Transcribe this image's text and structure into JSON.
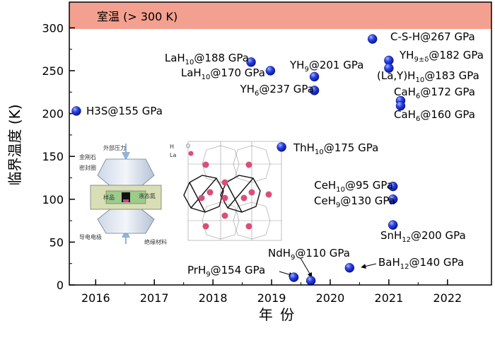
{
  "chart_data": {
    "type": "scatter",
    "xlabel": "年 份",
    "ylabel": "临界温度 (K)",
    "xlim": [
      2015.55,
      2022.75
    ],
    "ylim": [
      0,
      330
    ],
    "x_ticks": [
      2016,
      2017,
      2018,
      2019,
      2020,
      2021,
      2022
    ],
    "y_ticks": [
      0,
      50,
      100,
      150,
      200,
      250,
      300
    ],
    "band": {
      "label": "室温 (> 300 K)",
      "from": 300,
      "to": 330,
      "color": "#f4a090"
    },
    "marker_color": "#1f2fd8",
    "points": [
      {
        "x": 2015.67,
        "y": 203,
        "label": "H3S@155 GPa"
      },
      {
        "x": 2018.65,
        "y": 260,
        "label": "LaH10@188 GPa"
      },
      {
        "x": 2018.98,
        "y": 250,
        "label": "LaH10@170 GPa"
      },
      {
        "x": 2019.73,
        "y": 243,
        "label": "YH9@201 GPa"
      },
      {
        "x": 2019.73,
        "y": 227,
        "label": "YH6@237 GPa"
      },
      {
        "x": 2020.72,
        "y": 287,
        "label": "C-S-H@267 GPa"
      },
      {
        "x": 2021.0,
        "y": 262,
        "label": "YH9±δ@182 GPa"
      },
      {
        "x": 2021.0,
        "y": 253,
        "label": "(La,Y)H10@183 GPa"
      },
      {
        "x": 2021.2,
        "y": 215,
        "label": "CaH6@172 GPa"
      },
      {
        "x": 2021.2,
        "y": 209,
        "label": "CaH6@160 GPa"
      },
      {
        "x": 2019.17,
        "y": 161,
        "label": "ThH10@175 GPa"
      },
      {
        "x": 2021.07,
        "y": 115,
        "label": "CeH10@95 GPa"
      },
      {
        "x": 2021.07,
        "y": 100,
        "label": "CeH9@130 GPa"
      },
      {
        "x": 2021.07,
        "y": 70,
        "label": "SnH12@200 GPa"
      },
      {
        "x": 2019.67,
        "y": 5,
        "label": "NdH9@110 GPa"
      },
      {
        "x": 2019.38,
        "y": 9,
        "label": "PrH9@154 GPa"
      },
      {
        "x": 2020.33,
        "y": 20,
        "label": "BaH12@140 GPa"
      }
    ],
    "inset_labels": {
      "pressure": "外部压力",
      "diamond": "金刚石",
      "gasket": "密封圈",
      "sample": "样品",
      "medium": "液态氮",
      "electrode": "导电电极",
      "insulator": "绝缘材料",
      "atom_h": "H",
      "atom_la": "La"
    }
  }
}
